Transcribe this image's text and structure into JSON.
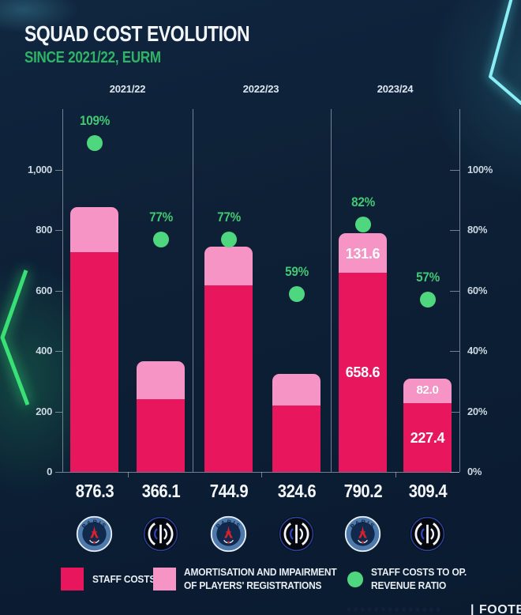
{
  "header": {
    "title": "SQUAD COST EVOLUTION",
    "subtitle": "SINCE 2021/22, EURM"
  },
  "colors": {
    "background": "#0d2036",
    "staff_costs": "#e8175d",
    "amortisation": "#f794c6",
    "ratio_green": "#4ed77e",
    "subtitle_green": "#2db466",
    "axis": "#c5d2de",
    "neon_cyan": "#8ceef5",
    "neon_green": "#3ce878"
  },
  "legend": {
    "staff": {
      "label": "STAFF COSTS"
    },
    "amortisation": {
      "line1": "AMORTISATION AND IMPAIRMENT",
      "line2": "OF PLAYERS' REGISTRATIONS"
    },
    "ratio": {
      "line1": "STAFF COSTS TO OP.",
      "line2": "REVENUE RATIO"
    }
  },
  "footer": {
    "credit_blurred": "· · · · · · · · · · · · · ·",
    "divider": "|",
    "brand": "FOOTBALL"
  },
  "chart_data": {
    "type": "bar",
    "subtype": "stacked-bars-with-ratio-dots",
    "title": "Squad cost evolution since 2021/22 (EURm)",
    "unit": "EURm",
    "categories": [
      "2021/22",
      "2022/23",
      "2023/24"
    ],
    "clubs": [
      "PSG",
      "INTER"
    ],
    "series_legend": [
      "STAFF COSTS",
      "AMORTISATION AND IMPAIRMENT OF PLAYERS' REGISTRATIONS",
      "STAFF COSTS TO OP. REVENUE RATIO"
    ],
    "bars": [
      {
        "season": "2021/22",
        "club": "PSG",
        "total": 876.3,
        "staff_costs": 728.0,
        "amortisation": 148.3,
        "ratio_pct": 109,
        "split_labels_visible": false,
        "split_estimated": true
      },
      {
        "season": "2021/22",
        "club": "INTER",
        "total": 366.1,
        "staff_costs": 240.0,
        "amortisation": 126.1,
        "ratio_pct": 77,
        "split_labels_visible": false,
        "split_estimated": true
      },
      {
        "season": "2022/23",
        "club": "PSG",
        "total": 744.9,
        "staff_costs": 617.0,
        "amortisation": 127.9,
        "ratio_pct": 77,
        "split_labels_visible": false,
        "split_estimated": true
      },
      {
        "season": "2022/23",
        "club": "INTER",
        "total": 324.6,
        "staff_costs": 219.0,
        "amortisation": 105.6,
        "ratio_pct": 59,
        "split_labels_visible": false,
        "split_estimated": true
      },
      {
        "season": "2023/24",
        "club": "PSG",
        "total": 790.2,
        "staff_costs": 658.6,
        "amortisation": 131.6,
        "ratio_pct": 82,
        "split_labels_visible": true,
        "split_estimated": false
      },
      {
        "season": "2023/24",
        "club": "INTER",
        "total": 309.4,
        "staff_costs": 227.4,
        "amortisation": 82.0,
        "ratio_pct": 57,
        "split_labels_visible": true,
        "split_estimated": false
      }
    ],
    "left_axis": {
      "range": [
        0,
        1150
      ],
      "ticks": [
        1000,
        800,
        600,
        400,
        200,
        0
      ],
      "tick_labels": [
        "1,000",
        "800",
        "600",
        "400",
        "200",
        "0"
      ]
    },
    "right_axis": {
      "range": [
        0,
        115
      ],
      "ticks": [
        100,
        80,
        60,
        40,
        20,
        0
      ],
      "tick_labels": [
        "100%",
        "80%",
        "60%",
        "40%",
        "20%",
        "0%"
      ]
    },
    "grid": false,
    "legend_position": "bottom"
  }
}
